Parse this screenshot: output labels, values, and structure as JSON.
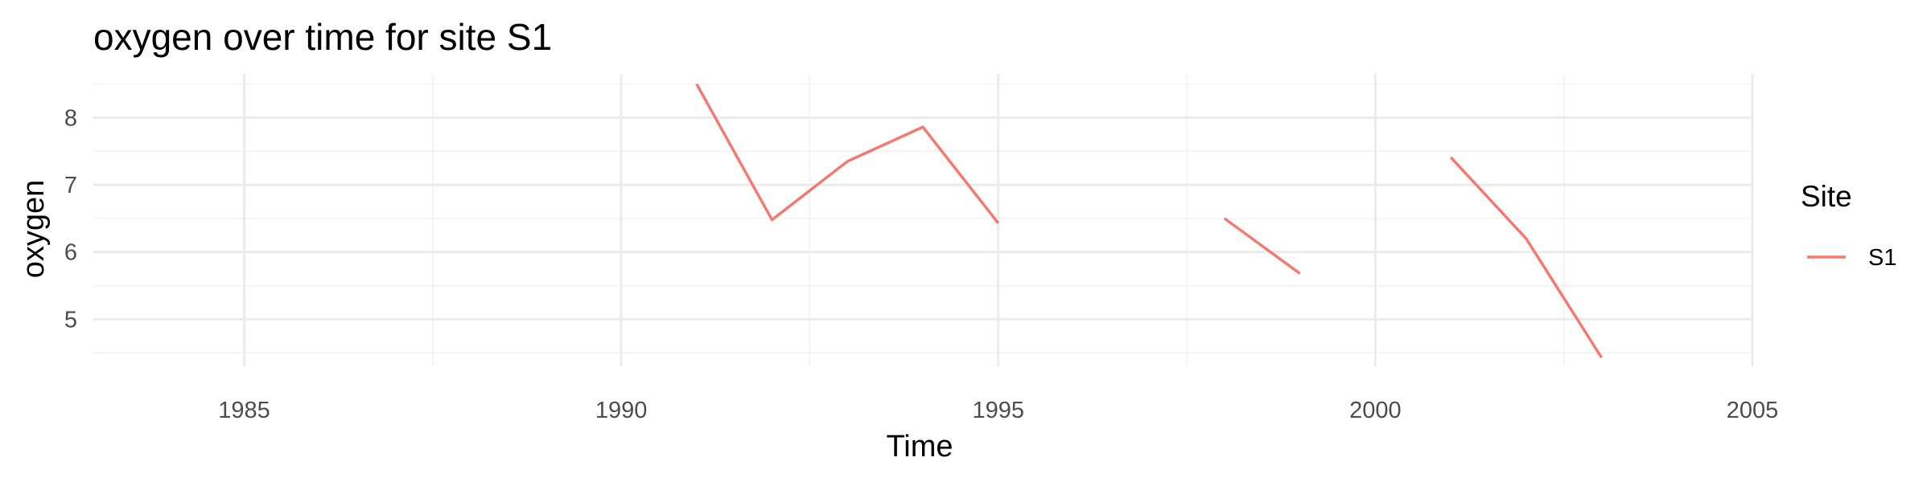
{
  "chart_data": {
    "type": "line",
    "title": "oxygen over time for site S1",
    "xlabel": "Time",
    "ylabel": "oxygen",
    "xlim": [
      1983,
      2005
    ],
    "ylim": [
      4.3,
      8.65
    ],
    "x_ticks": [
      1985,
      1990,
      1995,
      2000,
      2005
    ],
    "y_ticks": [
      5,
      6,
      7,
      8
    ],
    "grid": true,
    "legend": {
      "title": "Site",
      "position": "right"
    },
    "series": [
      {
        "name": "S1",
        "color": "#F8766D",
        "x": [
          1991,
          1992,
          1993,
          1994,
          1995,
          1996,
          1997,
          1998,
          1999,
          2000,
          2001,
          2002,
          2003
        ],
        "values": [
          8.5,
          6.48,
          7.35,
          7.86,
          6.43,
          null,
          null,
          6.5,
          5.68,
          null,
          7.41,
          6.2,
          4.43
        ]
      }
    ]
  }
}
